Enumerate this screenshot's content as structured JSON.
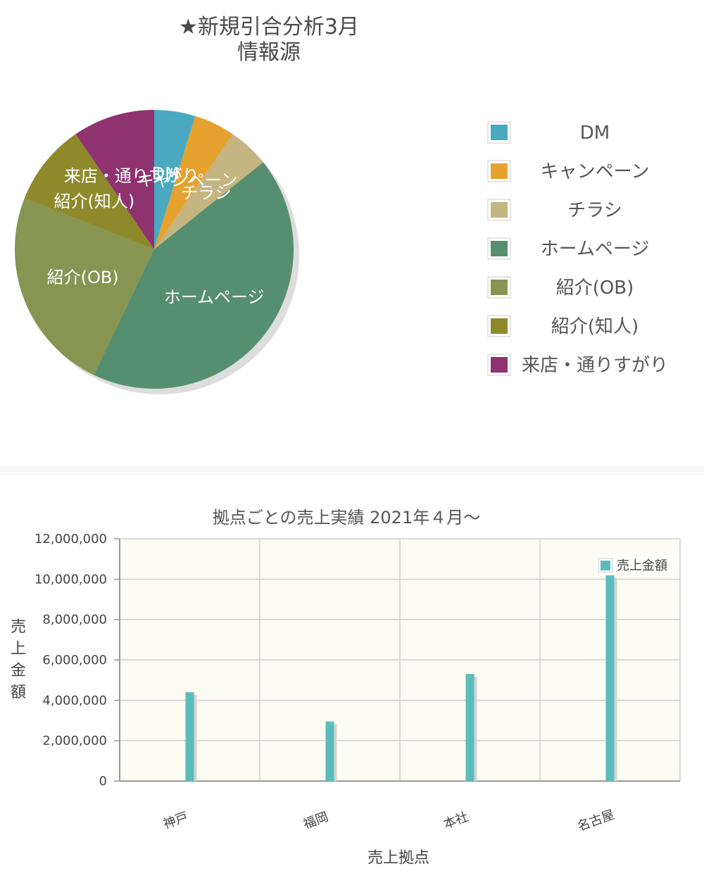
{
  "pie_chart": {
    "title_lines": [
      "★新規引合分析3月",
      "情報源"
    ],
    "chart_data": {
      "type": "pie",
      "title": "★新規引合分析3月 情報源",
      "slices": [
        {
          "label": "DM",
          "value": 1,
          "color": "#4aa9c0"
        },
        {
          "label": "キャンペーン",
          "value": 1,
          "color": "#e5a22f"
        },
        {
          "label": "チラシ",
          "value": 1,
          "color": "#c4b581"
        },
        {
          "label": "ホームページ",
          "value": 9,
          "color": "#558f6f"
        },
        {
          "label": "紹介(OB)",
          "value": 5,
          "color": "#879452"
        },
        {
          "label": "紹介(知人)",
          "value": 2,
          "color": "#8e8a2c"
        },
        {
          "label": "来店・通りすがり",
          "value": 2,
          "color": "#8e3270"
        }
      ],
      "legend_position": "right"
    }
  },
  "bar_chart": {
    "chart_data": {
      "type": "bar",
      "title": "拠点ごとの売上実績 2021年４月～",
      "categories": [
        "神戸",
        "福岡",
        "本社",
        "名古屋"
      ],
      "series": [
        {
          "name": "売上金額",
          "values": [
            4400000,
            2950000,
            5300000,
            10200000
          ],
          "color": "#5bbcbc"
        }
      ],
      "xlabel": "売上拠点",
      "ylabel": "売上金額",
      "ylim": [
        0,
        12000000
      ],
      "yticks": [
        "0",
        "2,000,000",
        "4,000,000",
        "6,000,000",
        "8,000,000",
        "10,000,000",
        "12,000,000"
      ],
      "grid": true,
      "legend_position": "top-right",
      "plot_background": "#fdfcf3"
    }
  }
}
